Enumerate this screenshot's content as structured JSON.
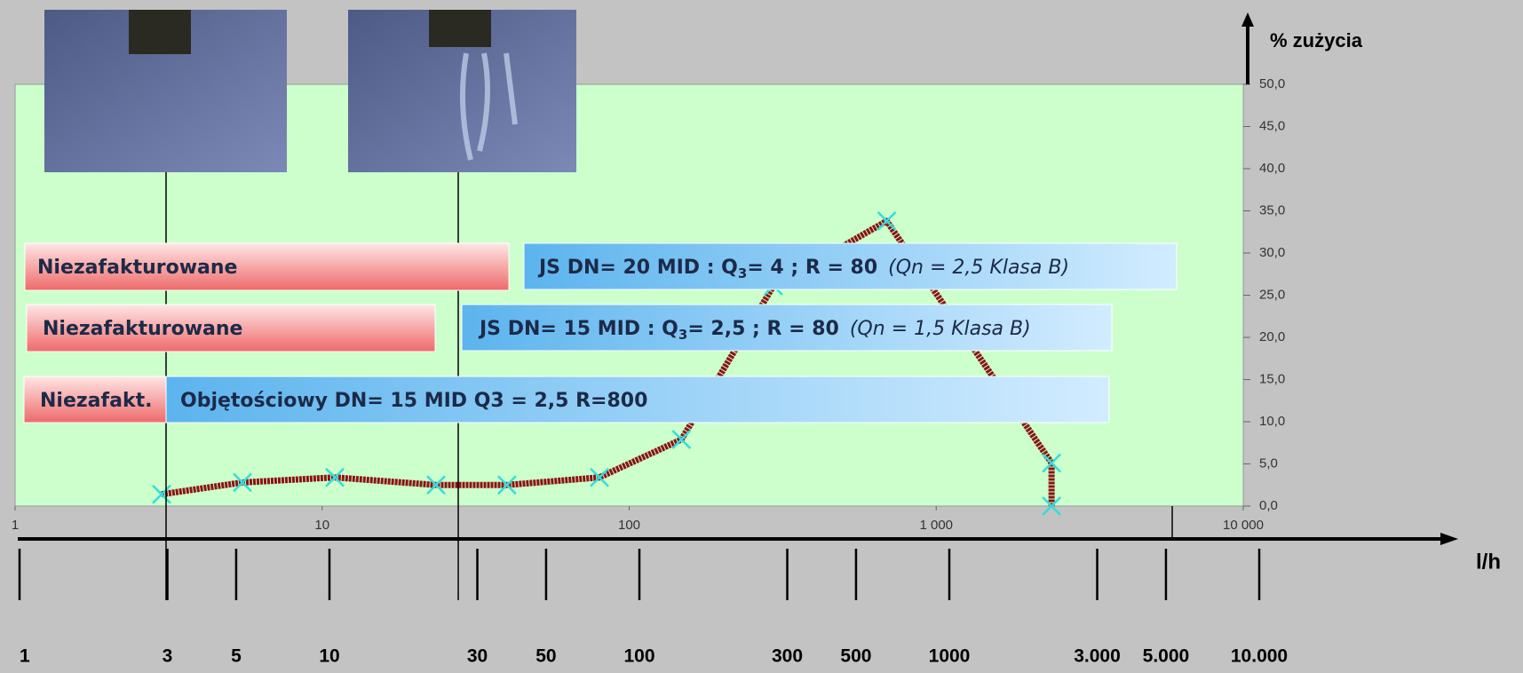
{
  "chart_data": {
    "type": "line",
    "x": [
      3.0,
      5.5,
      11,
      23.5,
      40,
      80,
      148,
      295,
      690,
      2375,
      2375
    ],
    "series": [
      {
        "name": "% zużycia",
        "color": "#8b1414",
        "values": [
          1.4,
          2.8,
          3.4,
          2.5,
          2.5,
          3.4,
          7.9,
          26.1,
          33.8,
          5.1,
          0
        ]
      }
    ],
    "marker_color": "#33dddd",
    "xscale": "log",
    "xlim": [
      1,
      10000
    ],
    "xticks": [
      1,
      10,
      100,
      {
        "value": 1000,
        "label": "1 000"
      },
      {
        "value": 10000,
        "label": "10 000"
      }
    ],
    "ylim": [
      0,
      50
    ],
    "yticks": [
      {
        "value": 0,
        "label": "0,0"
      },
      {
        "value": 5,
        "label": "5,0"
      },
      {
        "value": 10,
        "label": "10,0"
      },
      {
        "value": 15,
        "label": "15,0"
      },
      {
        "value": 20,
        "label": "20,0"
      },
      {
        "value": 25,
        "label": "25,0"
      },
      {
        "value": 30,
        "label": "30,0"
      },
      {
        "value": 35,
        "label": "35,0"
      },
      {
        "value": 40,
        "label": "40,0"
      },
      {
        "value": 45,
        "label": "45,0"
      },
      {
        "value": 50,
        "label": "50,0"
      }
    ],
    "ylabel": "% zużycia",
    "xlabel": "l/h",
    "x2lim": [
      1,
      10000
    ],
    "x2ticks": [
      1,
      3,
      5,
      10,
      30,
      50,
      100,
      300,
      500,
      1000,
      {
        "value": 3000,
        "label": "3.000"
      },
      {
        "value": 5000,
        "label": "5.000"
      },
      {
        "value": 10000,
        "label": "10.000"
      }
    ],
    "annotations": [
      {
        "unbilled": "Niezafakturowane",
        "text": "JS DN= 20 MID : Q",
        "sub": "3",
        "rest": "= 4 ; R = 80",
        "note": "(Qn = 2,5 Klasa B)"
      },
      {
        "unbilled": "Niezafakturowane",
        "text": "JS DN= 15 MID : Q",
        "sub": "3",
        "rest": "= 2,5 ; R = 80",
        "note": "(Qn = 1,5 Klasa B)"
      },
      {
        "unbilled": "Niezafakt.",
        "text": "Objętościowy DN= 15 MID Q3 = 2,5 R=800"
      }
    ]
  }
}
